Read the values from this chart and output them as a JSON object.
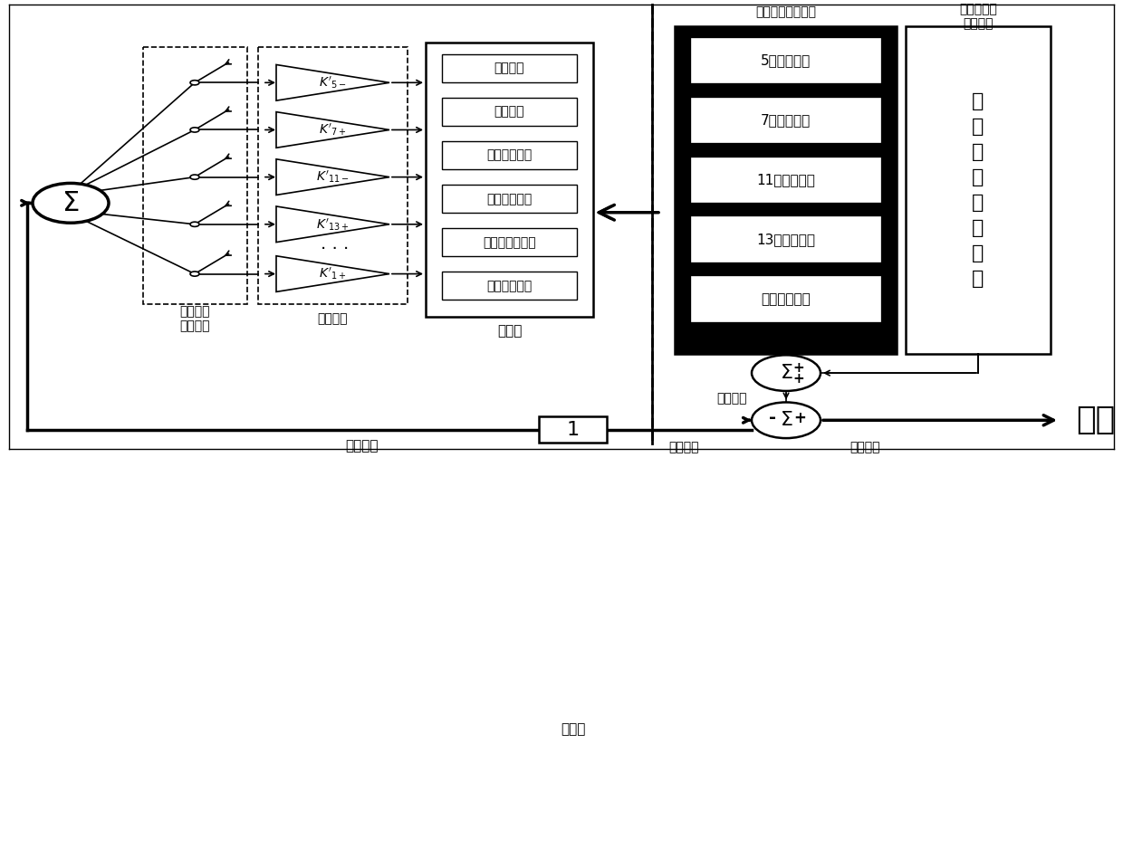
{
  "bg_color": "#ffffff",
  "line_color": "#000000",
  "controller_boxes": [
    "谐波分离",
    "容量分配",
    "运行状态反馈",
    "运行时间反馈",
    "补偿优先级设定",
    "限容系数下发"
  ],
  "harmonic_boxes": [
    "5次负序谐波",
    "7次正序谐波",
    "11次负序谐波",
    "13次正序谐波",
    "基波正序无功"
  ],
  "gain_labels": [
    "5-",
    "7+",
    "11-",
    "13+",
    "1+"
  ],
  "label_污染": "污染电网电流分量",
  "label_不污染": "不污染电网\n电流分量",
  "label_谐波": "谐波补偿\n频次设定",
  "label_限容": "限容系数",
  "label_控制器": "控制器",
  "label_电流环": "电流环",
  "label_负载": "负载电流",
  "label_补偿": "补偿电流",
  "label_网侧": "网侧电流",
  "label_指令": "指令电流",
  "label_电网": "电网",
  "label_基波": "基\n波\n正\n序\n有\n功\n电\n流"
}
